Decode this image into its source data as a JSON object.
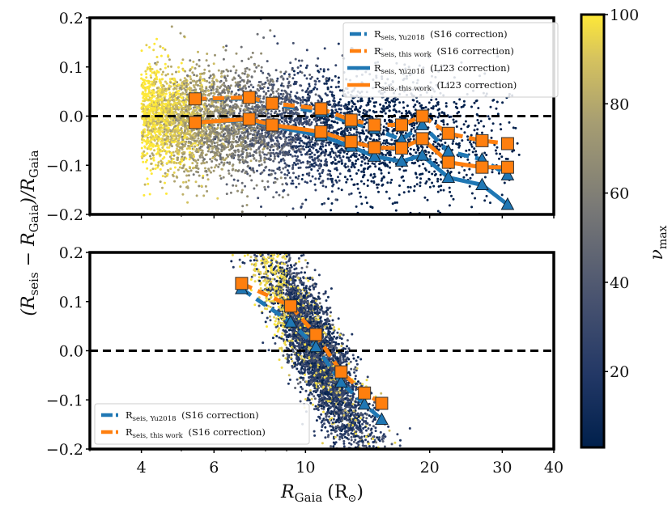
{
  "chart_data": {
    "type": "scatter",
    "colorbar": {
      "label": "ν",
      "label_sub": "max",
      "range": [
        3,
        100
      ],
      "ticks": [
        "20",
        "40",
        "60",
        "80",
        "100"
      ],
      "tick_values": [
        20,
        40,
        60,
        80,
        100
      ],
      "colormap": "cividis",
      "colors": [
        "#00204c",
        "#2b3e6e",
        "#575c6d",
        "#7c7b78",
        "#a59c74",
        "#d3c064",
        "#fee838"
      ]
    },
    "xlabel": "R",
    "xlabel_sub": "Gaia",
    "xlabel_unit": "(R",
    "xlabel_unit_sub": "⊙",
    "xlabel_close": ")",
    "ylabel_parts": [
      "(R",
      "seis",
      " − R",
      "Gaia",
      ")/R",
      "Gaia"
    ],
    "xscale": "log",
    "xlim": [
      3,
      40
    ],
    "xticks": [
      {
        "value": 4,
        "label": "4"
      },
      {
        "value": 6,
        "label": "6"
      },
      {
        "value": 10,
        "label": "10"
      },
      {
        "value": 20,
        "label": "20"
      },
      {
        "value": 30,
        "label": "30"
      },
      {
        "value": 40,
        "label": "40"
      }
    ],
    "panels": [
      {
        "name": "top",
        "ylim": [
          -0.2,
          0.2
        ],
        "yticks": [
          {
            "value": 0.2,
            "label": "0.2"
          },
          {
            "value": 0.1,
            "label": "0.1"
          },
          {
            "value": 0.0,
            "label": "0.0"
          },
          {
            "value": -0.1,
            "label": "−0.1"
          },
          {
            "value": -0.2,
            "label": "−0.2"
          }
        ],
        "reference_line": 0.0,
        "legend_position": "top-right",
        "scatter_description": "Background stars colored by nu_max; high nu_max (yellow) at small radii, low nu_max (dark blue) at large radii",
        "series": [
          {
            "name": "Rseis,Yu2018 (S16 correction)",
            "label_main": "R",
            "label_sub": "seis, Yu2018",
            "label_rest": " (S16 correction)",
            "color": "#1f77b4",
            "linestyle": "dashed",
            "marker": "triangle",
            "x": [
              5.4,
              7.3,
              8.3,
              10.9,
              12.9,
              14.7,
              17.1,
              19.2,
              22.2,
              26.8,
              30.9
            ],
            "y": [
              0.034,
              0.036,
              0.024,
              0.008,
              -0.014,
              -0.026,
              -0.048,
              -0.018,
              -0.072,
              -0.088,
              -0.12
            ]
          },
          {
            "name": "Rseis,this work (S16 correction)",
            "label_main": "R",
            "label_sub": "seis, this work",
            "label_rest": " (S16 correction)",
            "color": "#ff7f0e",
            "linestyle": "dashed",
            "marker": "square",
            "x": [
              5.4,
              7.3,
              8.3,
              10.9,
              12.9,
              14.7,
              17.1,
              19.2,
              22.2,
              26.8,
              30.9
            ],
            "y": [
              0.035,
              0.038,
              0.026,
              0.015,
              -0.008,
              -0.018,
              -0.018,
              0.0,
              -0.035,
              -0.05,
              -0.056
            ]
          },
          {
            "name": "Rseis,Yu2018 (Li23 correction)",
            "label_main": "R",
            "label_sub": "seis, Yu2018",
            "label_rest": " (Li23 correction)",
            "color": "#1f77b4",
            "linestyle": "solid",
            "marker": "triangle",
            "x": [
              5.4,
              7.3,
              8.3,
              10.9,
              12.9,
              14.7,
              17.1,
              19.2,
              22.2,
              26.8,
              30.9
            ],
            "y": [
              -0.012,
              -0.008,
              -0.02,
              -0.04,
              -0.062,
              -0.082,
              -0.092,
              -0.08,
              -0.125,
              -0.14,
              -0.18
            ]
          },
          {
            "name": "Rseis,this work (Li23 correction)",
            "label_main": "R",
            "label_sub": "seis, this work",
            "label_rest": " (Li23 correction)",
            "color": "#ff7f0e",
            "linestyle": "solid",
            "marker": "square",
            "x": [
              5.4,
              7.3,
              8.3,
              10.9,
              12.9,
              14.7,
              17.1,
              19.2,
              22.2,
              26.8,
              30.9
            ],
            "y": [
              -0.013,
              -0.006,
              -0.018,
              -0.032,
              -0.052,
              -0.064,
              -0.065,
              -0.046,
              -0.094,
              -0.104,
              -0.104
            ]
          }
        ]
      },
      {
        "name": "bottom",
        "ylim": [
          -0.2,
          0.2
        ],
        "yticks": [
          {
            "value": 0.2,
            "label": "0.2"
          },
          {
            "value": 0.1,
            "label": "0.1"
          },
          {
            "value": 0.0,
            "label": "0.0"
          },
          {
            "value": -0.1,
            "label": "−0.1"
          },
          {
            "value": -0.2,
            "label": "−0.2"
          }
        ],
        "reference_line": 0.0,
        "legend_position": "bottom-left",
        "scatter_description": "Background stars mostly low nu_max (dark blue) concentrated between R 8 and 15, diagonal trend",
        "series": [
          {
            "name": "Rseis,Yu2018 (S16 correction)",
            "label_main": "R",
            "label_sub": "seis, Yu2018",
            "label_rest": " (S16 correction)",
            "color": "#1f77b4",
            "linestyle": "dashed",
            "marker": "triangle",
            "x": [
              7.0,
              9.2,
              10.6,
              12.2,
              13.9,
              15.3
            ],
            "y": [
              0.126,
              0.058,
              0.008,
              -0.064,
              -0.109,
              -0.14
            ]
          },
          {
            "name": "Rseis,this work (S16 correction)",
            "label_main": "R",
            "label_sub": "seis, this work",
            "label_rest": " (S16 correction)",
            "color": "#ff7f0e",
            "linestyle": "dashed",
            "marker": "square",
            "x": [
              7.0,
              9.2,
              10.6,
              12.2,
              13.9,
              15.3
            ],
            "y": [
              0.137,
              0.091,
              0.033,
              -0.043,
              -0.086,
              -0.107
            ]
          }
        ]
      }
    ]
  }
}
